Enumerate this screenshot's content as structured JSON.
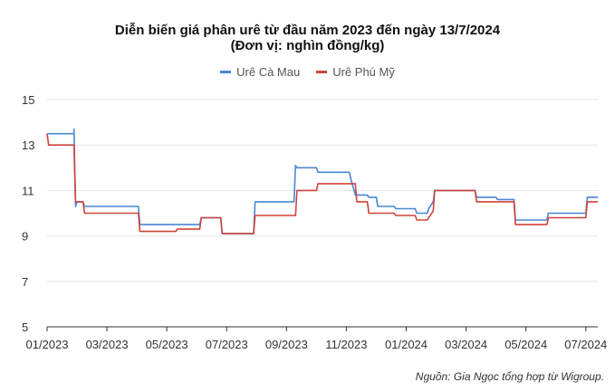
{
  "chart_data": {
    "type": "line",
    "title": "Diễn biến giá phân urê từ đầu năm 2023 đến ngày 13/7/2024",
    "subtitle": "(Đơn vị: nghìn đồng/kg)",
    "x_tick_labels": [
      "01/2023",
      "03/2023",
      "05/2023",
      "07/2023",
      "09/2023",
      "11/2023",
      "01/2024",
      "03/2024",
      "05/2024",
      "07/2024"
    ],
    "x_tick_months": [
      0,
      2,
      4,
      6,
      8,
      10,
      12,
      14,
      16,
      18
    ],
    "xlim": [
      0,
      18.4
    ],
    "ylim": [
      5,
      15
    ],
    "y_ticks": [
      5,
      7,
      9,
      11,
      13,
      15
    ],
    "grid": "horizontal",
    "legend_position": "top",
    "series": [
      {
        "name": "Urê Cà Mau",
        "color": "#4a86d4",
        "points": [
          [
            0,
            13.5
          ],
          [
            0.9,
            13.5
          ],
          [
            0.9,
            13.7
          ],
          [
            0.95,
            10.3
          ],
          [
            1.0,
            10.5
          ],
          [
            1.2,
            10.5
          ],
          [
            1.25,
            10.3
          ],
          [
            3.05,
            10.3
          ],
          [
            3.1,
            9.5
          ],
          [
            5.1,
            9.5
          ],
          [
            5.15,
            9.8
          ],
          [
            5.8,
            9.8
          ],
          [
            5.85,
            9.1
          ],
          [
            6.9,
            9.1
          ],
          [
            6.95,
            10.5
          ],
          [
            8.25,
            10.5
          ],
          [
            8.3,
            12.1
          ],
          [
            8.35,
            12.0
          ],
          [
            9.0,
            12.0
          ],
          [
            9.05,
            11.8
          ],
          [
            10.1,
            11.8
          ],
          [
            10.15,
            11.5
          ],
          [
            10.3,
            10.8
          ],
          [
            10.7,
            10.8
          ],
          [
            10.75,
            10.7
          ],
          [
            11.0,
            10.7
          ],
          [
            11.05,
            10.3
          ],
          [
            11.6,
            10.3
          ],
          [
            11.65,
            10.2
          ],
          [
            12.3,
            10.2
          ],
          [
            12.35,
            10.0
          ],
          [
            12.7,
            10.0
          ],
          [
            12.75,
            10.2
          ],
          [
            12.9,
            10.5
          ],
          [
            12.95,
            11.0
          ],
          [
            14.3,
            11.0
          ],
          [
            14.35,
            10.7
          ],
          [
            15.0,
            10.7
          ],
          [
            15.05,
            10.6
          ],
          [
            15.6,
            10.6
          ],
          [
            15.65,
            9.7
          ],
          [
            16.7,
            9.7
          ],
          [
            16.75,
            10.0
          ],
          [
            18.0,
            10.0
          ],
          [
            18.05,
            10.7
          ],
          [
            18.4,
            10.7
          ]
        ]
      },
      {
        "name": "Urê Phú Mỹ",
        "color": "#d0433c",
        "points": [
          [
            0,
            13.5
          ],
          [
            0.05,
            13.0
          ],
          [
            0.9,
            13.0
          ],
          [
            0.95,
            10.5
          ],
          [
            1.2,
            10.5
          ],
          [
            1.25,
            10.0
          ],
          [
            3.05,
            10.0
          ],
          [
            3.1,
            9.2
          ],
          [
            4.3,
            9.2
          ],
          [
            4.35,
            9.3
          ],
          [
            5.1,
            9.3
          ],
          [
            5.15,
            9.8
          ],
          [
            5.8,
            9.8
          ],
          [
            5.85,
            9.1
          ],
          [
            6.9,
            9.1
          ],
          [
            6.95,
            9.9
          ],
          [
            8.3,
            9.9
          ],
          [
            8.35,
            11.0
          ],
          [
            9.0,
            11.0
          ],
          [
            9.05,
            11.3
          ],
          [
            10.3,
            11.3
          ],
          [
            10.35,
            10.5
          ],
          [
            10.7,
            10.5
          ],
          [
            10.75,
            10.0
          ],
          [
            11.6,
            10.0
          ],
          [
            11.65,
            9.9
          ],
          [
            12.3,
            9.9
          ],
          [
            12.35,
            9.7
          ],
          [
            12.7,
            9.7
          ],
          [
            12.75,
            9.8
          ],
          [
            12.9,
            10.1
          ],
          [
            12.95,
            11.0
          ],
          [
            14.3,
            11.0
          ],
          [
            14.35,
            10.5
          ],
          [
            15.6,
            10.5
          ],
          [
            15.65,
            9.5
          ],
          [
            16.7,
            9.5
          ],
          [
            16.75,
            9.8
          ],
          [
            18.0,
            9.8
          ],
          [
            18.05,
            10.5
          ],
          [
            18.4,
            10.5
          ]
        ]
      }
    ]
  },
  "source": "Nguồn: Gia Ngọc tổng hợp từ Wigroup."
}
